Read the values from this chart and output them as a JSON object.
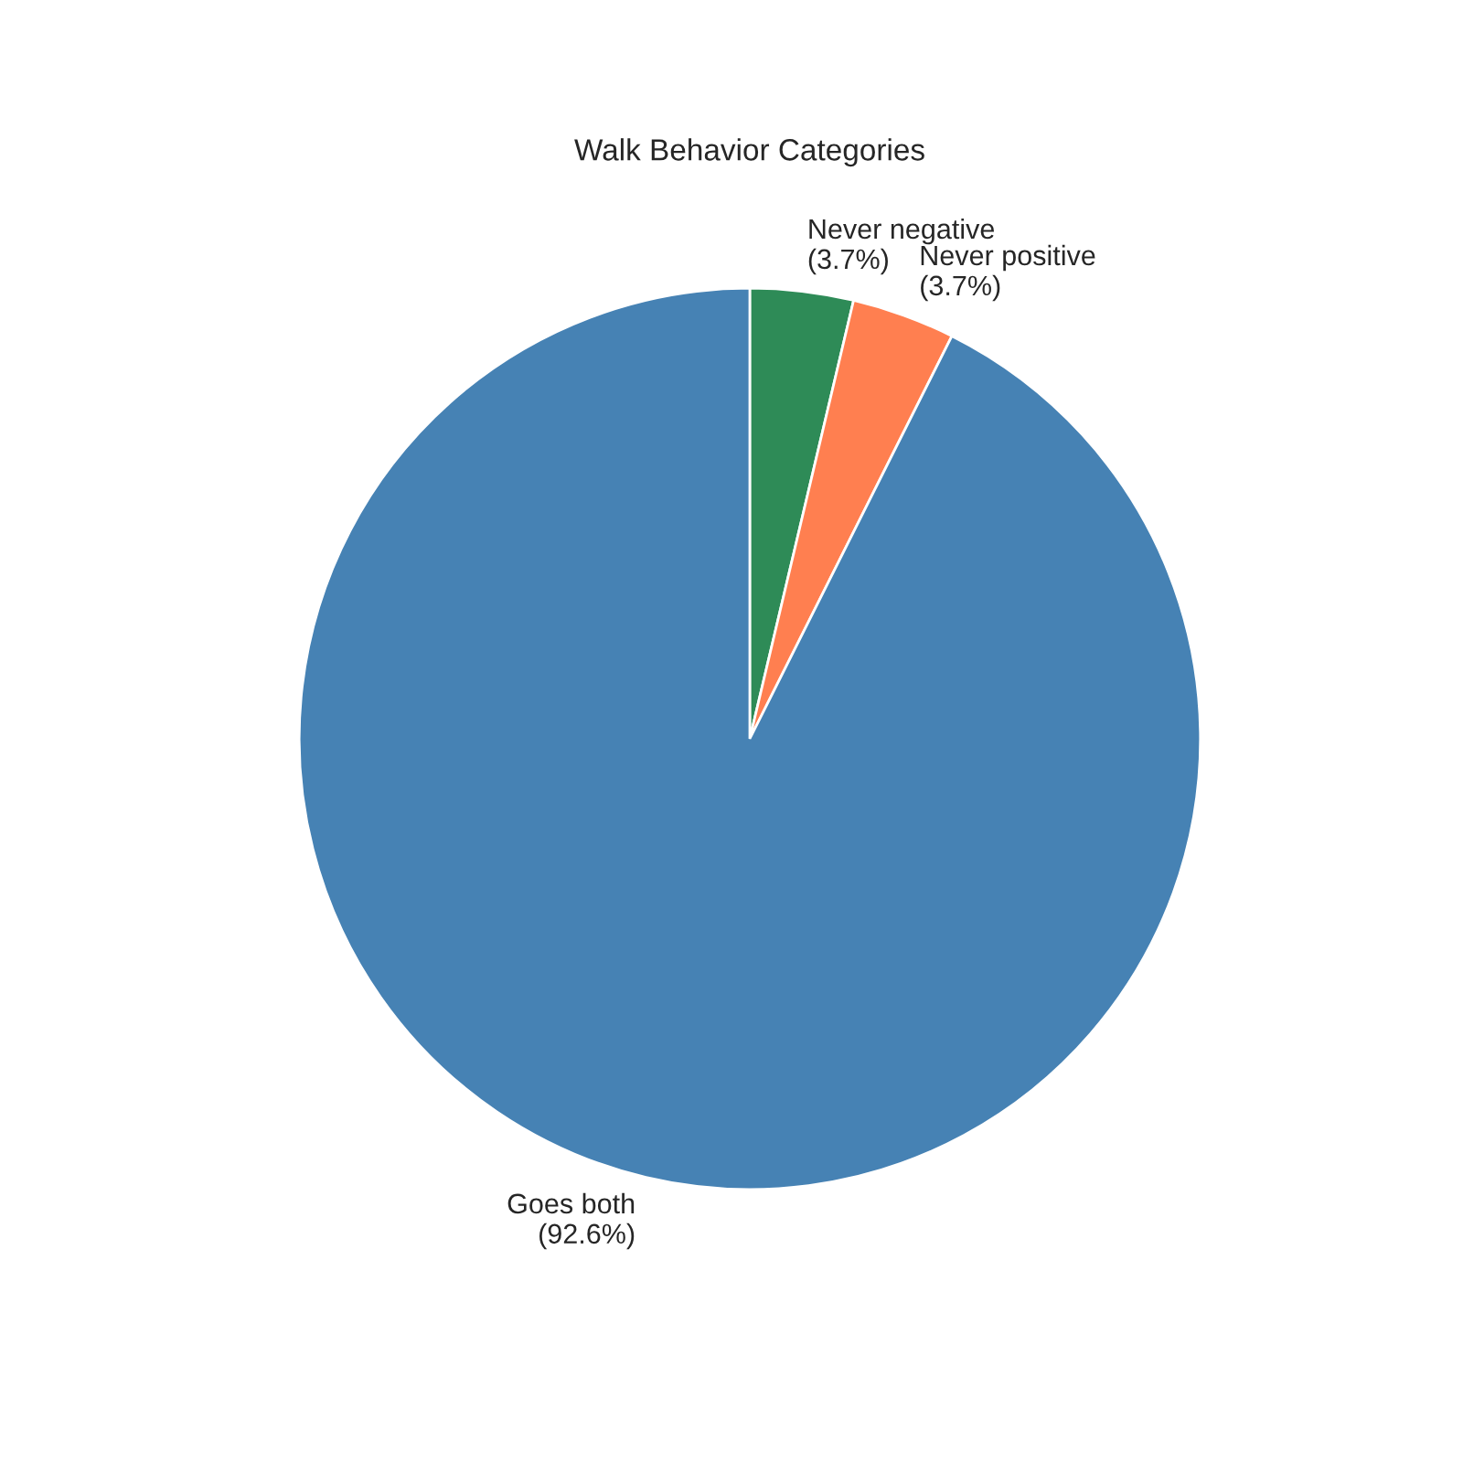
{
  "chart_data": {
    "type": "pie",
    "title": "Walk Behavior Categories",
    "categories": [
      "Never negative",
      "Never positive",
      "Goes both"
    ],
    "values": [
      3.7,
      3.7,
      92.6
    ],
    "value_labels": [
      "(3.7%)",
      "(3.7%)",
      "(92.6%)"
    ],
    "colors": [
      "#2e8b57",
      "#ff7f50",
      "#4682b4"
    ],
    "legend": false
  }
}
